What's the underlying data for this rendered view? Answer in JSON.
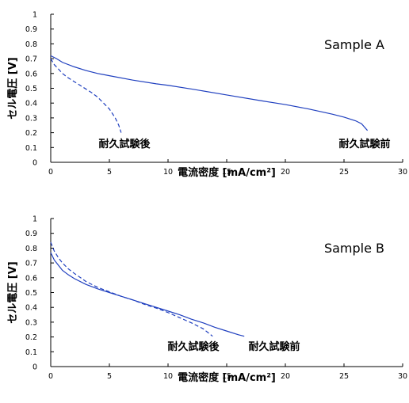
{
  "chart_data": [
    {
      "type": "line",
      "title": "Sample A",
      "xlabel": "電流密度 [mA/cm²]",
      "ylabel": "セル電圧 [V]",
      "xlim": [
        0,
        30
      ],
      "ylim": [
        0,
        1
      ],
      "xticks": [
        "0",
        "5",
        "10",
        "15",
        "20",
        "25",
        "30"
      ],
      "yticks": [
        "0",
        "0.1",
        "0.2",
        "0.3",
        "0.4",
        "0.5",
        "0.6",
        "0.7",
        "0.8",
        "0.9",
        "1"
      ],
      "grid": false,
      "series": [
        {
          "name": "耐久試験前",
          "style": "solid",
          "color": "#1f3fbf",
          "x": [
            0,
            0.5,
            1,
            2,
            3,
            4,
            5,
            7,
            9,
            10,
            12,
            15,
            18,
            20,
            22,
            24,
            25,
            26,
            26.5,
            27
          ],
          "y": [
            0.72,
            0.7,
            0.675,
            0.645,
            0.62,
            0.6,
            0.585,
            0.555,
            0.53,
            0.52,
            0.495,
            0.455,
            0.415,
            0.39,
            0.36,
            0.325,
            0.305,
            0.28,
            0.26,
            0.215
          ]
        },
        {
          "name": "耐久試験後",
          "style": "dashed",
          "color": "#1f3fbf",
          "x": [
            0,
            0.3,
            0.6,
            1,
            1.5,
            2,
            2.5,
            3,
            3.5,
            4,
            4.5,
            5,
            5.5,
            5.8,
            6
          ],
          "y": [
            0.7,
            0.66,
            0.635,
            0.6,
            0.57,
            0.545,
            0.52,
            0.495,
            0.47,
            0.44,
            0.4,
            0.36,
            0.3,
            0.25,
            0.2
          ]
        }
      ],
      "annotations": [
        "耐久試験後",
        "耐久試験前"
      ]
    },
    {
      "type": "line",
      "title": "Sample B",
      "xlabel": "電流密度 [mA/cm²]",
      "ylabel": "セル電圧 [V]",
      "xlim": [
        0,
        30
      ],
      "ylim": [
        0,
        1
      ],
      "xticks": [
        "0",
        "5",
        "10",
        "15",
        "20",
        "25",
        "30"
      ],
      "yticks": [
        "0",
        "0.1",
        "0.2",
        "0.3",
        "0.4",
        "0.5",
        "0.6",
        "0.7",
        "0.8",
        "0.9",
        "1"
      ],
      "grid": false,
      "series": [
        {
          "name": "耐久試験前",
          "style": "solid",
          "color": "#1f3fbf",
          "x": [
            0,
            0.3,
            0.7,
            1,
            1.5,
            2,
            3,
            4,
            5,
            6,
            7,
            8,
            9,
            10,
            11,
            12,
            13,
            14,
            15,
            16,
            16.5
          ],
          "y": [
            0.77,
            0.72,
            0.68,
            0.65,
            0.62,
            0.595,
            0.555,
            0.525,
            0.5,
            0.475,
            0.45,
            0.425,
            0.4,
            0.375,
            0.35,
            0.32,
            0.295,
            0.265,
            0.24,
            0.215,
            0.205
          ]
        },
        {
          "name": "耐久試験後",
          "style": "dashed",
          "color": "#1f3fbf",
          "x": [
            0,
            0.3,
            0.7,
            1,
            1.5,
            2,
            3,
            4,
            5,
            6,
            7,
            8,
            9,
            10,
            11,
            12,
            13,
            13.8
          ],
          "y": [
            0.84,
            0.78,
            0.73,
            0.7,
            0.66,
            0.63,
            0.575,
            0.535,
            0.505,
            0.475,
            0.45,
            0.42,
            0.395,
            0.365,
            0.33,
            0.295,
            0.255,
            0.205
          ]
        }
      ],
      "annotations": [
        "耐久試験後",
        "耐久試験前"
      ]
    }
  ]
}
